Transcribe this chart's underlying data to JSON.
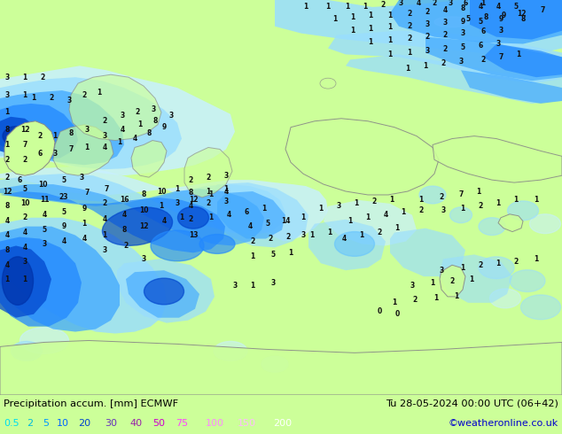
{
  "title_left": "Precipitation accum. [mm] ECMWF",
  "title_right": "Tu 28-05-2024 00:00 UTC (06+42)",
  "credit": "©weatheronline.co.uk",
  "legend_values": [
    "0.5",
    "2",
    "5",
    "10",
    "20",
    "30",
    "40",
    "50",
    "75",
    "100",
    "150",
    "200"
  ],
  "legend_label_colors": [
    "#00ddee",
    "#00bbdd",
    "#0099ff",
    "#0066ff",
    "#0044cc",
    "#6633bb",
    "#9922aa",
    "#cc00cc",
    "#ff44ff",
    "#ff88ff",
    "#ffbbff",
    "#ffffff"
  ],
  "bg_color": "#ccff99",
  "title_color": "#000000",
  "credit_color": "#0000cc",
  "figsize": [
    6.34,
    4.9
  ],
  "dpi": 100,
  "precip_colors": {
    "light1": "#c8f0ff",
    "light2": "#99ddff",
    "light3": "#66c4ff",
    "medium1": "#44aaff",
    "medium2": "#2288ff",
    "medium3": "#1166ee",
    "dark1": "#0044cc",
    "dark2": "#0033aa",
    "darkest": "#002288"
  },
  "land_color": "#ccff99",
  "coast_color": "#888888",
  "border_color": "#cc8888",
  "num_color": "#111111",
  "num_fontsize": 5.5
}
